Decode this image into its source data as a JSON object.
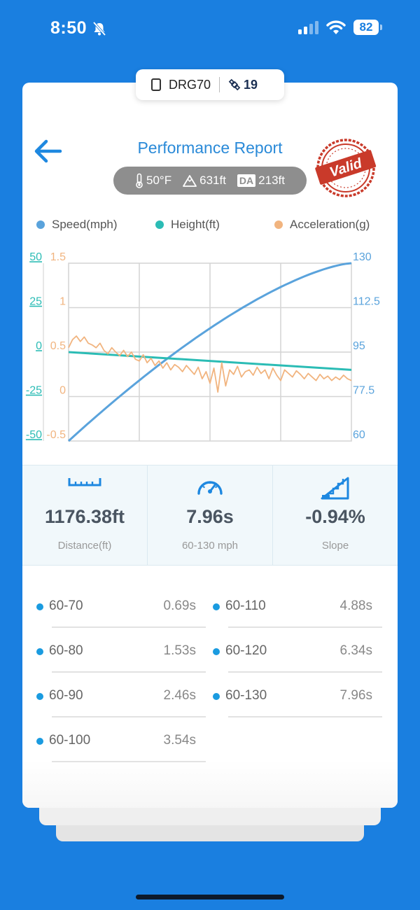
{
  "status": {
    "time": "8:50",
    "battery": "82"
  },
  "device": {
    "name": "DRG70",
    "satellites": "19"
  },
  "header": {
    "title": "Performance Report",
    "stamp_text": "Valid"
  },
  "conditions": {
    "temperature": "50°F",
    "altitude": "631ft",
    "da_label": "DA",
    "density_altitude": "213ft"
  },
  "legend": {
    "speed": "Speed(mph)",
    "height": "Height(ft)",
    "acceleration": "Acceleration(g)"
  },
  "colors": {
    "speed": "#5aa3dc",
    "height": "#2bbcb5",
    "acceleration": "#f1b47f",
    "accent": "#1a7fe0"
  },
  "chart_data": {
    "type": "line",
    "y_left_height": {
      "ticks": [
        "50",
        "25",
        "0",
        "-25",
        "-50"
      ],
      "range": [
        -50,
        50
      ]
    },
    "y_left_accel": {
      "ticks": [
        "1.5",
        "1",
        "0.5",
        "0",
        "-0.5"
      ],
      "range": [
        -0.5,
        1.5
      ]
    },
    "y_right_speed": {
      "ticks": [
        "130",
        "112.5",
        "95",
        "77.5",
        "60"
      ],
      "range": [
        60,
        130
      ]
    },
    "grid": true,
    "series": [
      {
        "name": "Speed(mph)",
        "axis": "right",
        "start": 60,
        "end": 130
      },
      {
        "name": "Height(ft)",
        "axis": "left",
        "start": 0,
        "end": -10
      },
      {
        "name": "Acceleration(g)",
        "axis": "left2",
        "values": [
          0.55,
          0.64,
          0.68,
          0.62,
          0.67,
          0.6,
          0.58,
          0.55,
          0.6,
          0.52,
          0.48,
          0.55,
          0.5,
          0.46,
          0.52,
          0.45,
          0.5,
          0.42,
          0.4,
          0.47,
          0.38,
          0.43,
          0.35,
          0.4,
          0.32,
          0.38,
          0.3,
          0.36,
          0.33,
          0.28,
          0.35,
          0.3,
          0.25,
          0.33,
          0.2,
          0.28,
          0.15,
          0.32,
          0.05,
          0.38,
          0.12,
          0.3,
          0.25,
          0.34,
          0.22,
          0.28,
          0.3,
          0.24,
          0.33,
          0.26,
          0.3,
          0.2,
          0.32,
          0.24,
          0.18,
          0.3,
          0.26,
          0.22,
          0.29,
          0.25,
          0.2,
          0.26,
          0.22,
          0.18,
          0.25,
          0.2,
          0.23,
          0.18,
          0.22,
          0.19,
          0.24,
          0.2,
          0.18
        ]
      }
    ]
  },
  "stats": {
    "distance": {
      "value": "1176.38ft",
      "label": "Distance(ft)"
    },
    "time": {
      "value": "7.96s",
      "label": "60-130 mph"
    },
    "slope": {
      "value": "-0.94%",
      "label": "Slope"
    }
  },
  "splits": [
    {
      "range": "60-70",
      "time": "0.69s"
    },
    {
      "range": "60-80",
      "time": "1.53s"
    },
    {
      "range": "60-90",
      "time": "2.46s"
    },
    {
      "range": "60-100",
      "time": "3.54s"
    },
    {
      "range": "60-110",
      "time": "4.88s"
    },
    {
      "range": "60-120",
      "time": "6.34s"
    },
    {
      "range": "60-130",
      "time": "7.96s"
    }
  ]
}
